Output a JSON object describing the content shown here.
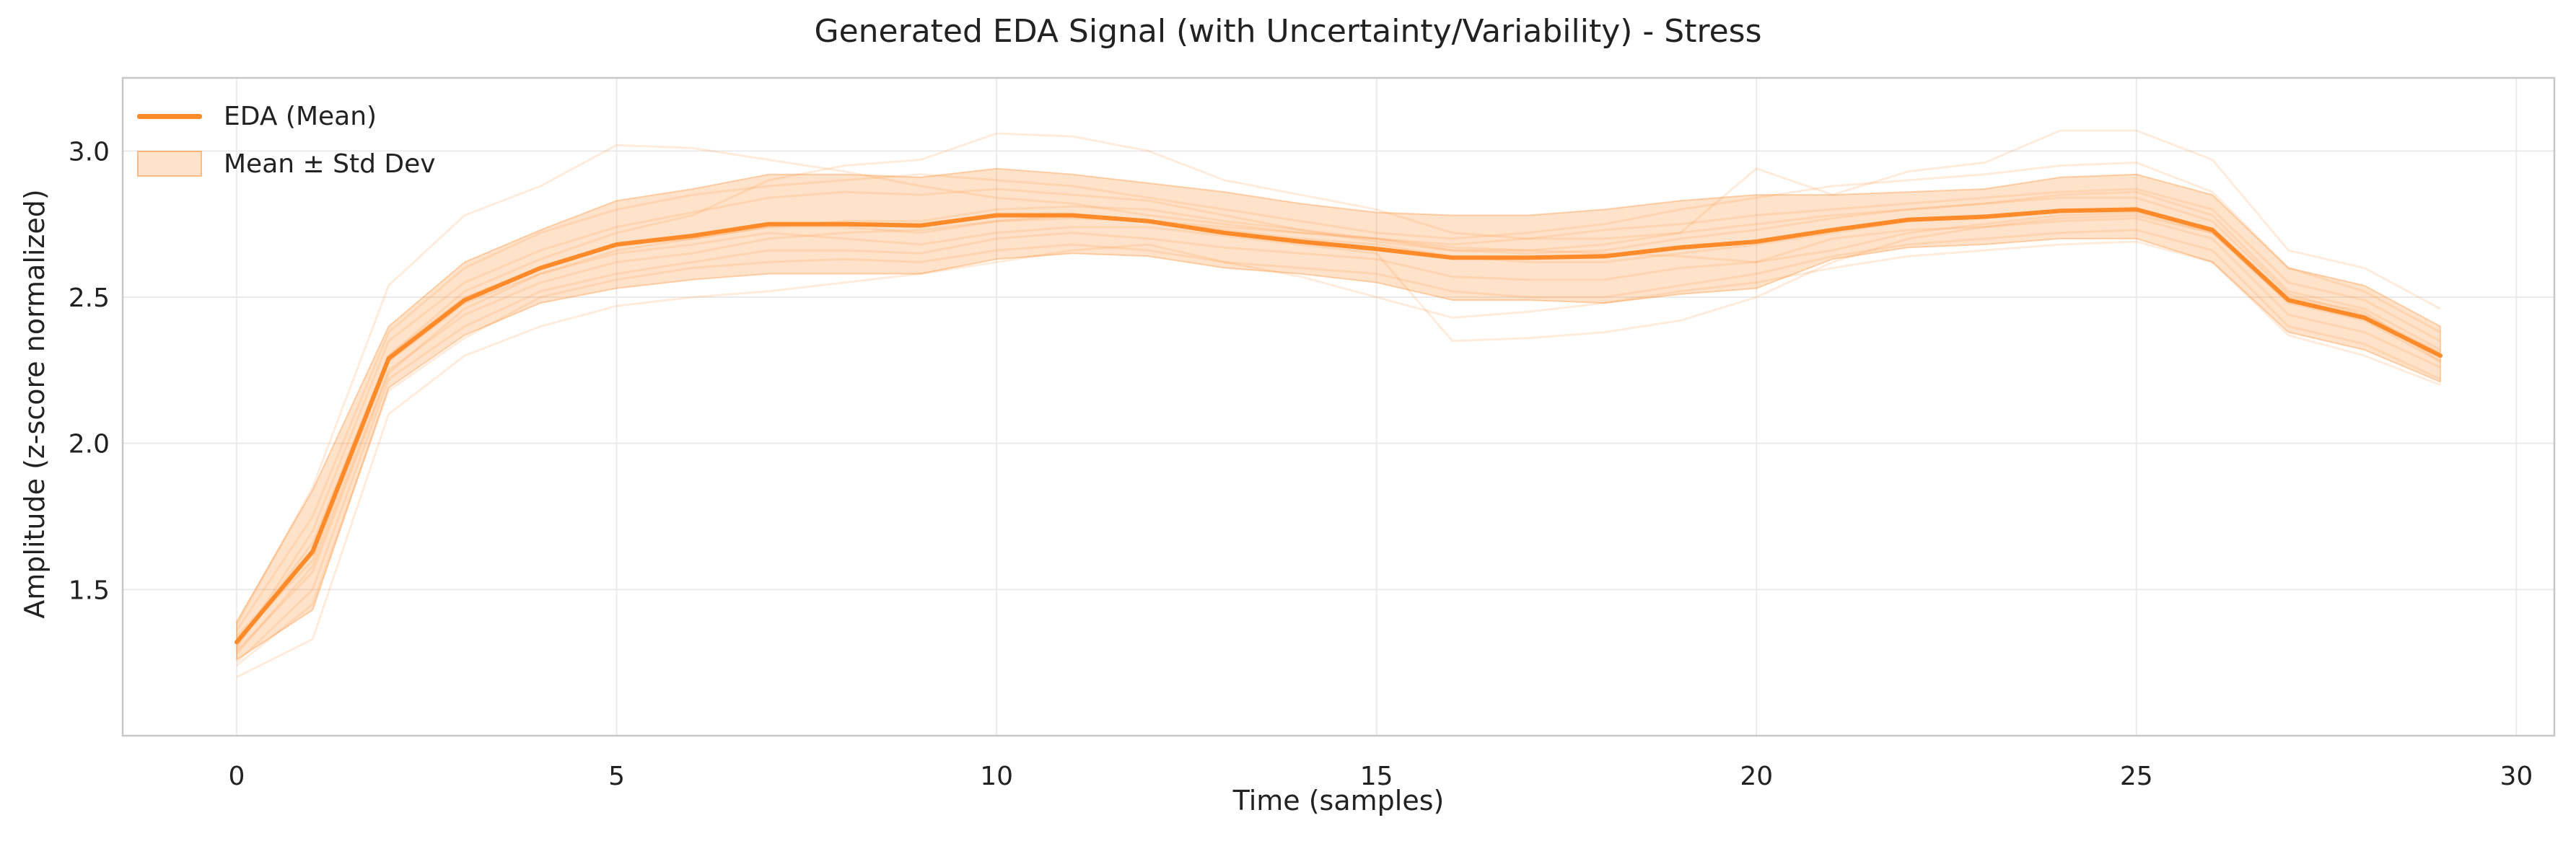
{
  "chart_data": {
    "type": "line",
    "title": "Generated EDA Signal (with Uncertainty/Variability) - Stress",
    "xlabel": "Time (samples)",
    "ylabel": "Amplitude (z-score normalized)",
    "xlim": [
      -1.5,
      30.5
    ],
    "ylim": [
      1.0,
      3.25
    ],
    "xticks": [
      0,
      5,
      10,
      15,
      20,
      25,
      30
    ],
    "yticks": [
      1.5,
      2.0,
      2.5,
      3.0
    ],
    "grid": true,
    "legend_position": "top-left",
    "x": [
      0,
      1,
      2,
      3,
      4,
      5,
      6,
      7,
      8,
      9,
      10,
      11,
      12,
      13,
      14,
      15,
      16,
      17,
      18,
      19,
      20,
      21,
      22,
      23,
      24,
      25,
      26,
      27,
      28,
      29
    ],
    "series": [
      {
        "name": "EDA (Mean)",
        "color": "#ff8a2a",
        "values": [
          1.32,
          1.63,
          2.29,
          2.49,
          2.6,
          2.68,
          2.71,
          2.75,
          2.75,
          2.745,
          2.78,
          2.78,
          2.76,
          2.72,
          2.69,
          2.665,
          2.635,
          2.635,
          2.64,
          2.67,
          2.69,
          2.73,
          2.765,
          2.775,
          2.795,
          2.8,
          2.73,
          2.49,
          2.43,
          2.3
        ]
      }
    ],
    "band": {
      "name": "Mean ± Std Dev",
      "color": "#ff8a2a",
      "lower": [
        1.26,
        1.43,
        2.19,
        2.37,
        2.48,
        2.53,
        2.56,
        2.58,
        2.58,
        2.58,
        2.63,
        2.65,
        2.64,
        2.6,
        2.58,
        2.55,
        2.49,
        2.49,
        2.48,
        2.51,
        2.53,
        2.63,
        2.67,
        2.68,
        2.7,
        2.7,
        2.62,
        2.38,
        2.32,
        2.21
      ],
      "upper": [
        1.39,
        1.84,
        2.4,
        2.62,
        2.73,
        2.83,
        2.87,
        2.92,
        2.92,
        2.91,
        2.94,
        2.92,
        2.89,
        2.86,
        2.82,
        2.79,
        2.78,
        2.78,
        2.8,
        2.83,
        2.85,
        2.85,
        2.86,
        2.87,
        2.91,
        2.92,
        2.85,
        2.6,
        2.54,
        2.4
      ]
    },
    "samples": [
      [
        1.3,
        1.7,
        2.35,
        2.55,
        2.66,
        2.74,
        2.79,
        2.84,
        2.86,
        2.85,
        2.87,
        2.85,
        2.83,
        2.78,
        2.73,
        2.69,
        2.66,
        2.65,
        2.66,
        2.7,
        2.73,
        2.77,
        2.8,
        2.82,
        2.84,
        2.84,
        2.76,
        2.51,
        2.44,
        2.31
      ],
      [
        1.25,
        1.5,
        2.22,
        2.4,
        2.52,
        2.58,
        2.62,
        2.66,
        2.66,
        2.65,
        2.7,
        2.72,
        2.7,
        2.67,
        2.65,
        2.63,
        2.57,
        2.56,
        2.56,
        2.6,
        2.62,
        2.7,
        2.73,
        2.74,
        2.76,
        2.77,
        2.7,
        2.44,
        2.38,
        2.26
      ],
      [
        1.38,
        1.85,
        2.54,
        2.78,
        2.88,
        3.02,
        3.01,
        2.97,
        2.93,
        2.88,
        2.84,
        2.82,
        2.78,
        2.75,
        2.72,
        2.7,
        2.68,
        2.7,
        2.73,
        2.75,
        2.78,
        2.8,
        2.82,
        2.84,
        2.86,
        2.87,
        2.8,
        2.55,
        2.49,
        2.35
      ],
      [
        1.2,
        1.33,
        2.1,
        2.3,
        2.4,
        2.47,
        2.5,
        2.52,
        2.55,
        2.58,
        2.62,
        2.66,
        2.68,
        2.62,
        2.57,
        2.5,
        2.43,
        2.45,
        2.48,
        2.52,
        2.55,
        2.6,
        2.64,
        2.66,
        2.68,
        2.69,
        2.62,
        2.37,
        2.3,
        2.2
      ],
      [
        1.34,
        1.62,
        2.3,
        2.52,
        2.63,
        2.72,
        2.78,
        2.9,
        2.95,
        2.97,
        3.06,
        3.05,
        3.0,
        2.9,
        2.85,
        2.8,
        2.72,
        2.7,
        2.7,
        2.72,
        2.75,
        2.78,
        2.8,
        2.82,
        2.85,
        2.86,
        2.78,
        2.52,
        2.46,
        2.32
      ],
      [
        1.28,
        1.58,
        2.25,
        2.44,
        2.55,
        2.62,
        2.65,
        2.7,
        2.72,
        2.73,
        2.76,
        2.78,
        2.76,
        2.74,
        2.72,
        2.7,
        2.66,
        2.66,
        2.65,
        2.64,
        2.62,
        2.66,
        2.72,
        2.75,
        2.78,
        2.79,
        2.72,
        2.48,
        2.42,
        2.28
      ],
      [
        1.36,
        1.75,
        2.38,
        2.6,
        2.72,
        2.8,
        2.85,
        2.88,
        2.9,
        2.92,
        2.9,
        2.88,
        2.84,
        2.8,
        2.76,
        2.72,
        2.7,
        2.72,
        2.75,
        2.8,
        2.84,
        2.88,
        2.9,
        2.92,
        2.95,
        2.96,
        2.86,
        2.6,
        2.52,
        2.38
      ],
      [
        1.24,
        1.45,
        2.18,
        2.36,
        2.5,
        2.56,
        2.6,
        2.62,
        2.63,
        2.62,
        2.66,
        2.68,
        2.66,
        2.62,
        2.6,
        2.58,
        2.52,
        2.5,
        2.5,
        2.54,
        2.58,
        2.64,
        2.68,
        2.7,
        2.72,
        2.73,
        2.66,
        2.4,
        2.34,
        2.22
      ],
      [
        1.31,
        1.66,
        2.3,
        2.5,
        2.6,
        2.68,
        2.7,
        2.74,
        2.74,
        2.72,
        2.76,
        2.77,
        2.76,
        2.73,
        2.7,
        2.68,
        2.64,
        2.62,
        2.62,
        2.65,
        2.68,
        2.72,
        2.76,
        2.77,
        2.8,
        2.8,
        2.73,
        2.49,
        2.43,
        2.3
      ],
      [
        1.33,
        1.6,
        2.28,
        2.48,
        2.58,
        2.65,
        2.68,
        2.72,
        2.7,
        2.68,
        2.72,
        2.74,
        2.74,
        2.71,
        2.68,
        2.65,
        2.35,
        2.36,
        2.38,
        2.42,
        2.5,
        2.62,
        2.7,
        2.74,
        2.77,
        2.78,
        2.72,
        2.5,
        2.45,
        2.28
      ],
      [
        1.29,
        1.56,
        2.24,
        2.46,
        2.58,
        2.66,
        2.7,
        2.74,
        2.76,
        2.76,
        2.8,
        2.81,
        2.8,
        2.76,
        2.73,
        2.7,
        2.67,
        2.66,
        2.68,
        2.72,
        2.94,
        2.85,
        2.93,
        2.96,
        3.07,
        3.07,
        2.97,
        2.66,
        2.6,
        2.46
      ]
    ]
  }
}
